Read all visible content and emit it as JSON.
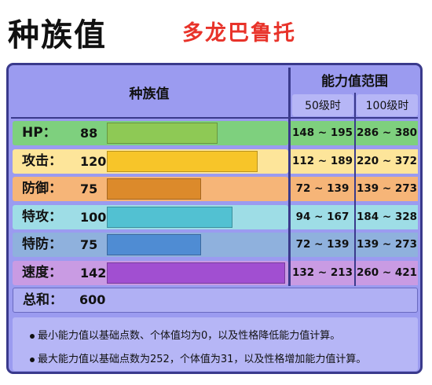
{
  "title": "种族值",
  "subtitle": "多龙巴鲁托",
  "header": {
    "base_label": "种族值",
    "range_label": "能力值范围",
    "lv50": "50级时",
    "lv100": "100级时"
  },
  "stats": [
    {
      "label": "HP：",
      "value": "88",
      "range50": "148 ~ 195",
      "range100": "286 ~ 380",
      "row_color": "#7ed07e",
      "bar_color": "#8ec955"
    },
    {
      "label": "攻击：",
      "value": "120",
      "range50": "112 ~ 189",
      "range100": "220 ~ 372",
      "row_color": "#fde59a",
      "bar_color": "#f7c529"
    },
    {
      "label": "防御：",
      "value": "75",
      "range50": "72 ~ 139",
      "range100": "139 ~ 273",
      "row_color": "#f6b578",
      "bar_color": "#dc8a2b"
    },
    {
      "label": "特攻：",
      "value": "100",
      "range50": "94 ~ 167",
      "range100": "184 ~ 328",
      "row_color": "#9edde6",
      "bar_color": "#52c1d2"
    },
    {
      "label": "特防：",
      "value": "75",
      "range50": "72 ~ 139",
      "range100": "139 ~ 273",
      "row_color": "#8fb1dd",
      "bar_color": "#4f8cd3"
    },
    {
      "label": "速度：",
      "value": "142",
      "range50": "132 ~ 213",
      "range100": "260 ~ 421",
      "row_color": "#c99be3",
      "bar_color": "#a14fd1"
    }
  ],
  "total": {
    "label": "总和：",
    "value": "600"
  },
  "notes": [
    "最小能力值以基础点数、个体值均为0，以及性格降低能力值计算。",
    "最大能力值以基础点数为252，个体值为31，以及性格增加能力值计算。"
  ]
}
